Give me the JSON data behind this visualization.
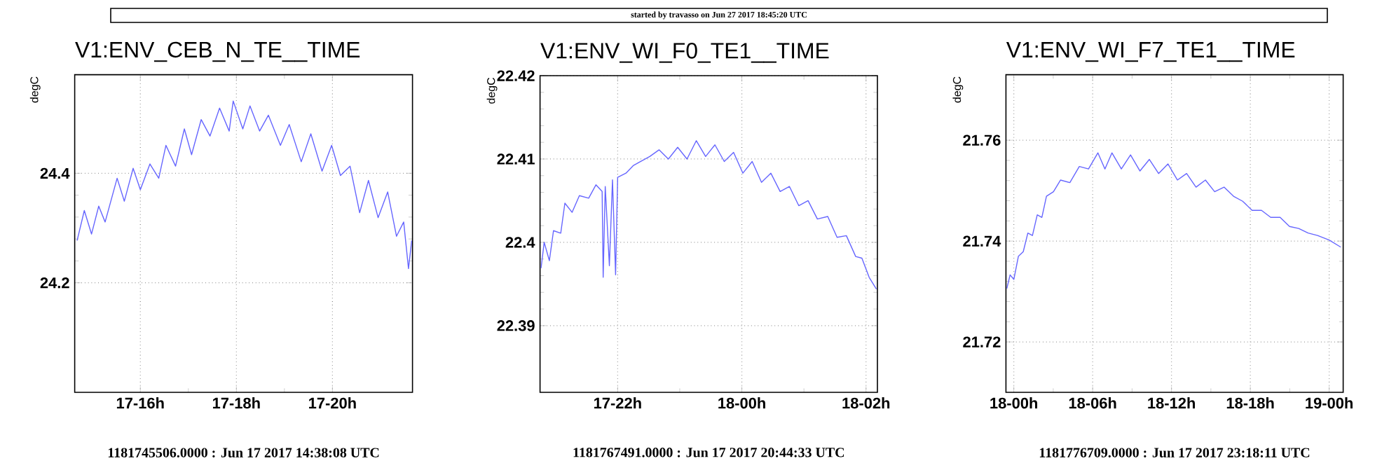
{
  "chart_data": [
    {
      "type": "line",
      "title": "V1:ENV_CEB_N_TE__TIME",
      "ylabel": "degC",
      "grid": true,
      "xlim": [
        "2017-06-17T14:38",
        "2017-06-17T21:40"
      ],
      "ylim": [
        24.0,
        24.58
      ],
      "xticks": [
        {
          "value": "2017-06-17T16:00",
          "label": "17-16h"
        },
        {
          "value": "2017-06-17T18:00",
          "label": "17-18h"
        },
        {
          "value": "2017-06-17T20:00",
          "label": "17-20h"
        }
      ],
      "yticks": [
        24.2,
        24.4
      ],
      "annotations": [
        "1181745506.0000 : Jun 17 2017 14:38:08 UTC",
        "started by travasso on Jun 27 2017 18:45:20 UTC"
      ],
      "series": [
        {
          "color": "#6666ff",
          "x": [
            "2017-06-17T14:41",
            "2017-06-17T14:50",
            "2017-06-17T14:59",
            "2017-06-17T15:08",
            "2017-06-17T15:16",
            "2017-06-17T15:31",
            "2017-06-17T15:40",
            "2017-06-17T15:51",
            "2017-06-17T16:00",
            "2017-06-17T16:12",
            "2017-06-17T16:23",
            "2017-06-17T16:32",
            "2017-06-17T16:44",
            "2017-06-17T16:55",
            "2017-06-17T17:04",
            "2017-06-17T17:16",
            "2017-06-17T17:27",
            "2017-06-17T17:39",
            "2017-06-17T17:51",
            "2017-06-17T17:56",
            "2017-06-17T18:08",
            "2017-06-17T18:17",
            "2017-06-17T18:29",
            "2017-06-17T18:40",
            "2017-06-17T18:55",
            "2017-06-17T19:06",
            "2017-06-17T19:21",
            "2017-06-17T19:33",
            "2017-06-17T19:47",
            "2017-06-17T19:59",
            "2017-06-17T20:10",
            "2017-06-17T20:22",
            "2017-06-17T20:34",
            "2017-06-17T20:45",
            "2017-06-17T20:57",
            "2017-06-17T21:09",
            "2017-06-17T21:20",
            "2017-06-17T21:29",
            "2017-06-17T21:35",
            "2017-06-17T21:39"
          ],
          "values": [
            24.277,
            24.332,
            24.289,
            24.34,
            24.311,
            24.391,
            24.349,
            24.409,
            24.37,
            24.417,
            24.391,
            24.451,
            24.413,
            24.481,
            24.434,
            24.498,
            24.468,
            24.519,
            24.477,
            24.532,
            24.481,
            24.523,
            24.477,
            24.506,
            24.451,
            24.489,
            24.421,
            24.472,
            24.404,
            24.451,
            24.396,
            24.413,
            24.328,
            24.387,
            24.319,
            24.366,
            24.285,
            24.311,
            24.226,
            24.277
          ]
        }
      ]
    },
    {
      "type": "line",
      "title": "V1:ENV_WI_F0_TE1__TIME",
      "ylabel": "degC",
      "grid": true,
      "xlim": [
        "2017-06-17T20:45",
        "2017-06-18T02:11"
      ],
      "ylim": [
        22.382,
        22.42
      ],
      "xticks": [
        {
          "value": "2017-06-17T22:00",
          "label": "17-22h"
        },
        {
          "value": "2017-06-18T00:00",
          "label": "18-00h"
        },
        {
          "value": "2017-06-18T02:00",
          "label": "18-02h"
        }
      ],
      "yticks": [
        22.39,
        22.4,
        22.41,
        22.42
      ],
      "annotations": [
        "1181767491.0000 : Jun 17 2017 20:44:33 UTC"
      ],
      "series": [
        {
          "color": "#6666ff",
          "x": [
            "2017-06-17T20:46",
            "2017-06-17T20:49",
            "2017-06-17T20:54",
            "2017-06-17T20:58",
            "2017-06-17T21:05",
            "2017-06-17T21:09",
            "2017-06-17T21:16",
            "2017-06-17T21:23",
            "2017-06-17T21:32",
            "2017-06-17T21:39",
            "2017-06-17T21:45",
            "2017-06-17T21:46",
            "2017-06-17T21:48",
            "2017-06-17T21:52",
            "2017-06-17T21:55",
            "2017-06-17T21:58",
            "2017-06-17T22:00",
            "2017-06-17T22:08",
            "2017-06-17T22:15",
            "2017-06-17T22:22",
            "2017-06-17T22:31",
            "2017-06-17T22:40",
            "2017-06-17T22:49",
            "2017-06-17T22:58",
            "2017-06-17T23:07",
            "2017-06-17T23:16",
            "2017-06-17T23:25",
            "2017-06-17T23:34",
            "2017-06-17T23:43",
            "2017-06-17T23:52",
            "2017-06-18T00:01",
            "2017-06-18T00:10",
            "2017-06-18T00:19",
            "2017-06-18T00:28",
            "2017-06-18T00:37",
            "2017-06-18T00:46",
            "2017-06-18T00:55",
            "2017-06-18T01:04",
            "2017-06-18T01:13",
            "2017-06-18T01:23",
            "2017-06-18T01:32",
            "2017-06-18T01:41",
            "2017-06-18T01:50",
            "2017-06-18T01:56",
            "2017-06-18T02:03",
            "2017-06-18T02:10"
          ],
          "values": [
            22.3969,
            22.4,
            22.3978,
            22.4014,
            22.4011,
            22.4047,
            22.4036,
            22.4056,
            22.4053,
            22.4069,
            22.4061,
            22.3958,
            22.4067,
            22.3972,
            22.4075,
            22.3961,
            22.4078,
            22.4083,
            22.4092,
            22.4097,
            22.4103,
            22.4111,
            22.41,
            22.4114,
            22.41,
            22.4122,
            22.4103,
            22.4117,
            22.4097,
            22.4108,
            22.4083,
            22.4097,
            22.4072,
            22.4083,
            22.4061,
            22.4067,
            22.4044,
            22.405,
            22.4028,
            22.4031,
            22.4006,
            22.4008,
            22.3983,
            22.3981,
            22.3958,
            22.3944
          ]
        }
      ]
    },
    {
      "type": "line",
      "title": "V1:ENV_WI_F7_TE1__TIME",
      "ylabel": "degC",
      "grid": true,
      "xlim": [
        "2017-06-17T23:24",
        "2017-06-19T01:04"
      ],
      "ylim": [
        21.71,
        21.773
      ],
      "xticks": [
        {
          "value": "2017-06-18T00:00",
          "label": "18-00h"
        },
        {
          "value": "2017-06-18T06:00",
          "label": "18-06h"
        },
        {
          "value": "2017-06-18T12:00",
          "label": "18-12h"
        },
        {
          "value": "2017-06-18T18:00",
          "label": "18-18h"
        },
        {
          "value": "2017-06-19T00:00",
          "label": "19-00h"
        }
      ],
      "yticks": [
        21.72,
        21.74,
        21.76
      ],
      "annotations": [
        "1181776709.0000 : Jun 17 2017 23:18:11 UTC"
      ],
      "series": [
        {
          "color": "#6666ff",
          "x": [
            "2017-06-17T23:28",
            "2017-06-17T23:43",
            "2017-06-18T00:00",
            "2017-06-18T00:21",
            "2017-06-18T00:43",
            "2017-06-18T01:04",
            "2017-06-18T01:25",
            "2017-06-18T01:47",
            "2017-06-18T02:08",
            "2017-06-18T02:29",
            "2017-06-18T03:01",
            "2017-06-18T03:33",
            "2017-06-18T04:16",
            "2017-06-18T04:59",
            "2017-06-18T05:41",
            "2017-06-18T06:24",
            "2017-06-18T06:56",
            "2017-06-18T07:28",
            "2017-06-18T08:11",
            "2017-06-18T08:53",
            "2017-06-18T09:36",
            "2017-06-18T10:19",
            "2017-06-18T11:01",
            "2017-06-18T11:44",
            "2017-06-18T12:27",
            "2017-06-18T13:09",
            "2017-06-18T13:52",
            "2017-06-18T14:35",
            "2017-06-18T15:17",
            "2017-06-18T16:00",
            "2017-06-18T16:43",
            "2017-06-18T17:25",
            "2017-06-18T18:08",
            "2017-06-18T18:51",
            "2017-06-18T19:33",
            "2017-06-18T20:16",
            "2017-06-18T20:59",
            "2017-06-18T21:41",
            "2017-06-18T22:24",
            "2017-06-18T23:07",
            "2017-06-19T00:00",
            "2017-06-19T00:53"
          ],
          "values": [
            21.7306,
            21.7333,
            21.7324,
            21.737,
            21.7379,
            21.7416,
            21.7411,
            21.7452,
            21.7447,
            21.7489,
            21.7498,
            21.7521,
            21.7516,
            21.7548,
            21.7543,
            21.7575,
            21.7543,
            21.7575,
            21.7543,
            21.7571,
            21.7539,
            21.7562,
            21.7534,
            21.7553,
            21.7521,
            21.7534,
            21.7507,
            21.7521,
            21.7498,
            21.7507,
            21.7489,
            21.7479,
            21.7461,
            21.7461,
            21.7447,
            21.7447,
            21.7429,
            21.7425,
            21.7416,
            21.7411,
            21.7402,
            21.7388
          ]
        }
      ]
    }
  ]
}
